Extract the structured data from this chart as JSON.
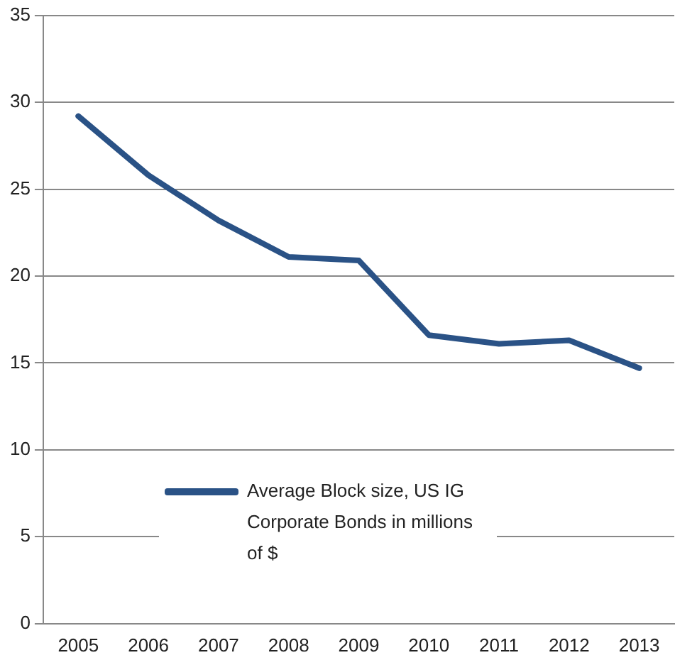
{
  "chart_data": {
    "type": "line",
    "categories": [
      "2005",
      "2006",
      "2007",
      "2008",
      "2009",
      "2010",
      "2011",
      "2012",
      "2013"
    ],
    "series": [
      {
        "name": "Average Block size, US IG Corporate Bonds in millions of $",
        "color": "#2a5286",
        "values": [
          29.2,
          25.8,
          23.2,
          21.1,
          20.9,
          16.6,
          16.1,
          16.3,
          14.7
        ]
      }
    ],
    "ylim": [
      0,
      35
    ],
    "yticks": [
      0,
      5,
      10,
      15,
      20,
      25,
      30,
      35
    ],
    "grid": "y",
    "legend": "bottom left",
    "marker": "none",
    "line_style": "solid"
  }
}
